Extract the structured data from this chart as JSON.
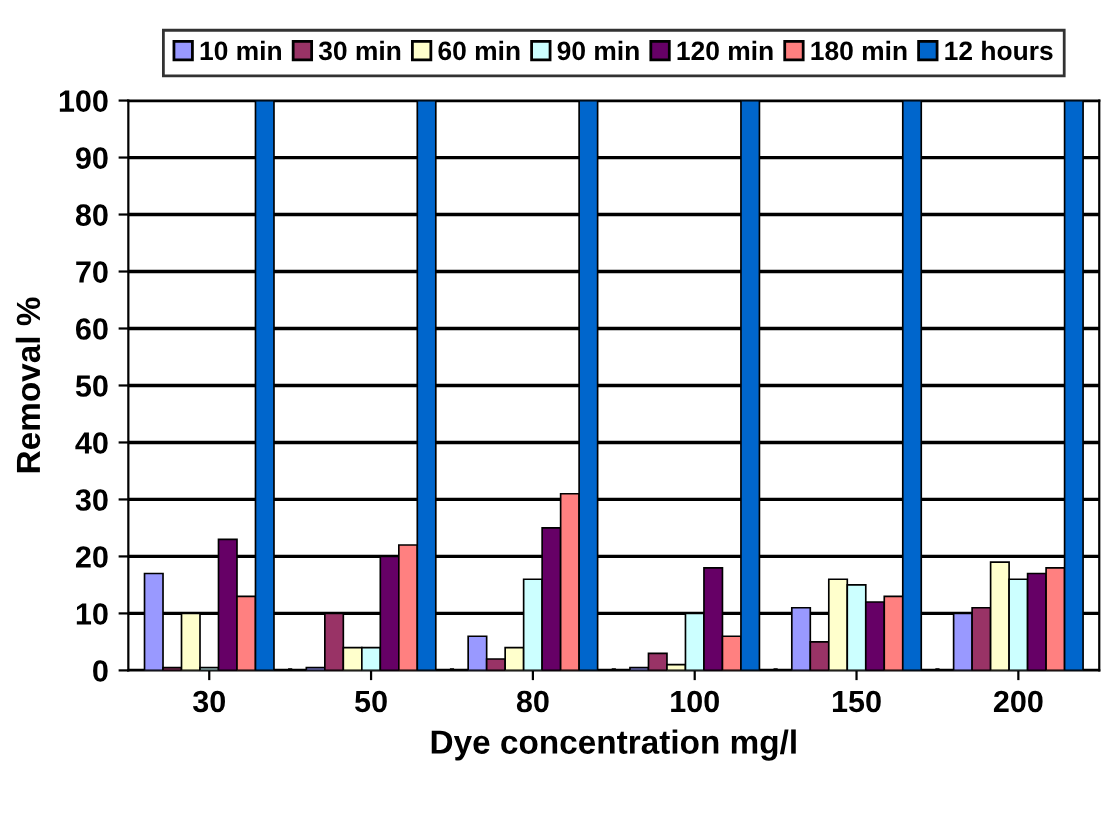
{
  "chart_data": {
    "type": "bar",
    "xlabel": "Dye concentration mg/l",
    "ylabel": "Removal %",
    "categories": [
      "30",
      "50",
      "80",
      "100",
      "150",
      "200"
    ],
    "series": [
      {
        "name": "10 min",
        "color": "#9999ff",
        "values": [
          17,
          0.5,
          6,
          0.5,
          11,
          10
        ]
      },
      {
        "name": "30 min",
        "color": "#993366",
        "values": [
          0.5,
          10,
          2,
          3,
          5,
          11
        ]
      },
      {
        "name": "60 min",
        "color": "#ffffcc",
        "values": [
          10,
          4,
          4,
          1,
          16,
          19
        ]
      },
      {
        "name": "90 min",
        "color": "#ccffff",
        "values": [
          0.5,
          4,
          16,
          10,
          15,
          16
        ]
      },
      {
        "name": "120 min",
        "color": "#660066",
        "values": [
          23,
          20,
          25,
          18,
          12,
          17
        ]
      },
      {
        "name": "180 min",
        "color": "#ff8080",
        "values": [
          13,
          22,
          31,
          6,
          13,
          18
        ]
      },
      {
        "name": "12 hours",
        "color": "#0066cc",
        "values": [
          100,
          100,
          100,
          100,
          100,
          100
        ]
      }
    ],
    "ylim": [
      0,
      100
    ],
    "yticks": [
      0,
      10,
      20,
      30,
      40,
      50,
      60,
      70,
      80,
      90,
      100
    ],
    "grid": "y",
    "legend": "top"
  }
}
